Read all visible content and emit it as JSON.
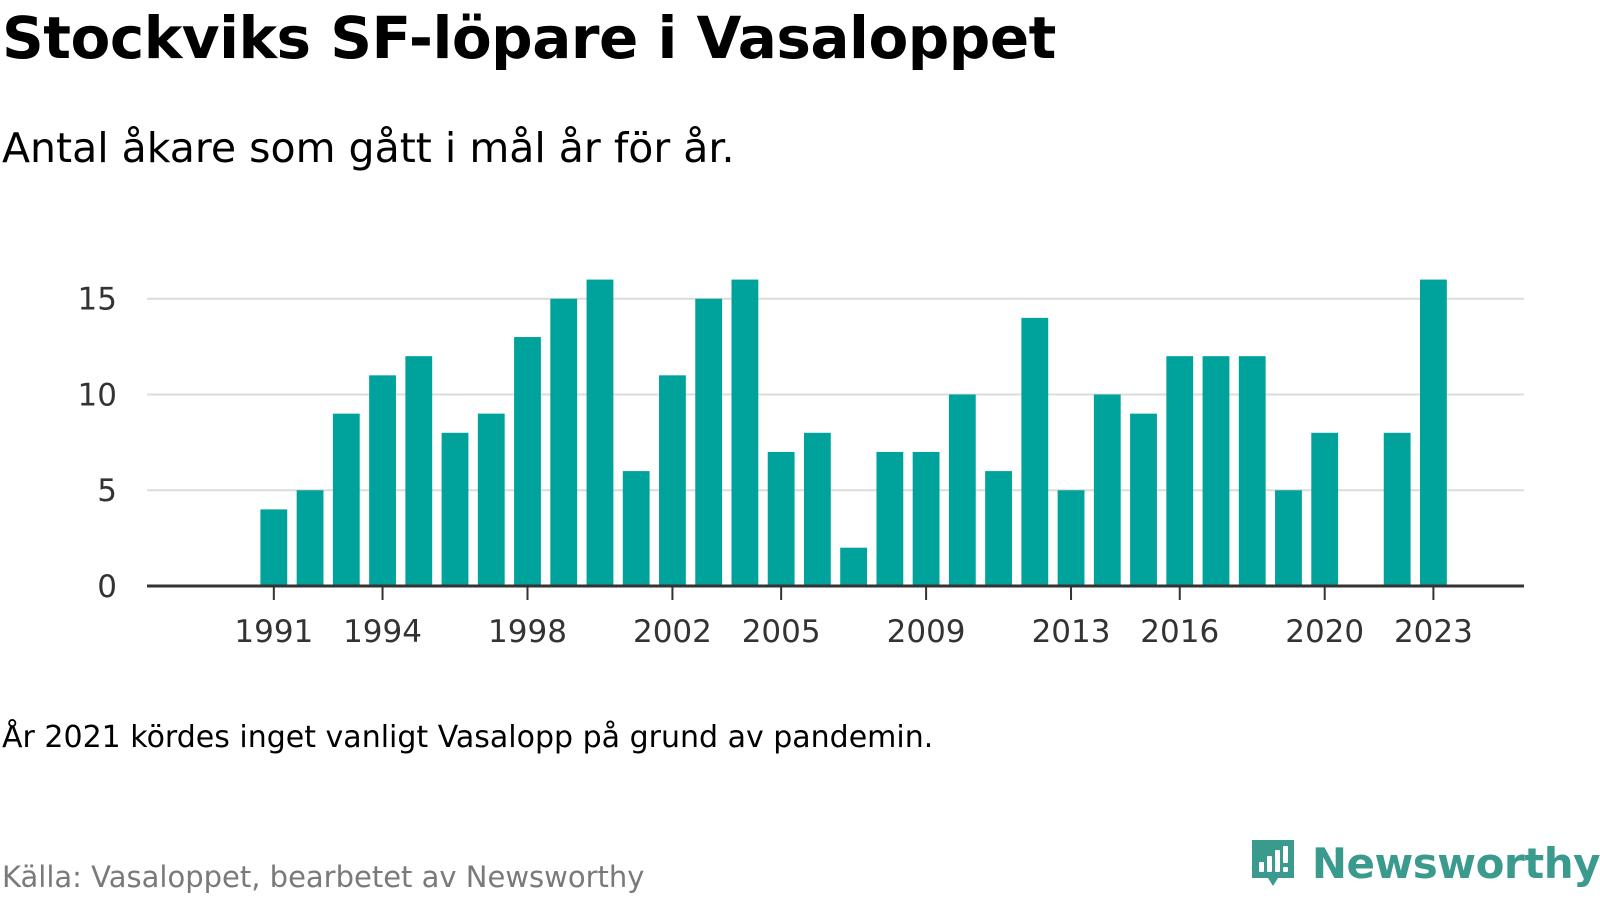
{
  "title": "Stockviks SF-löpare i Vasaloppet",
  "subtitle": "Antal åkare som gått i mål år för år.",
  "note": "År 2021 kördes inget vanligt Vasalopp på grund av pandemin.",
  "source": "Källa: Vasaloppet, bearbetet av Newsworthy",
  "brand": "Newsworthy",
  "logo_icon": "newsworthy-logo-icon",
  "colors": {
    "bar": "#00a39b",
    "grid": "#dcdcdc",
    "axis": "#333333",
    "brand": "#3a9a8e"
  },
  "chart_data": {
    "type": "bar",
    "title": "Stockviks SF-löpare i Vasaloppet",
    "subtitle": "Antal åkare som gått i mål år för år.",
    "xlabel": "",
    "ylabel": "",
    "x": [
      1991,
      1992,
      1993,
      1994,
      1995,
      1996,
      1997,
      1998,
      1999,
      2000,
      2001,
      2002,
      2003,
      2004,
      2005,
      2006,
      2007,
      2008,
      2009,
      2010,
      2011,
      2012,
      2013,
      2014,
      2015,
      2016,
      2017,
      2018,
      2019,
      2020,
      2021,
      2022,
      2023
    ],
    "values": [
      4,
      5,
      9,
      11,
      12,
      8,
      9,
      13,
      15,
      16,
      6,
      11,
      15,
      16,
      7,
      8,
      2,
      7,
      7,
      10,
      6,
      14,
      5,
      10,
      9,
      12,
      12,
      12,
      5,
      8,
      null,
      8,
      16
    ],
    "x_ticks": [
      1991,
      1994,
      1998,
      2002,
      2005,
      2009,
      2013,
      2016,
      2020,
      2023
    ],
    "y_ticks": [
      0,
      5,
      10,
      15
    ],
    "xlim": [
      1987.5,
      2025.5
    ],
    "ylim": [
      0,
      16.5
    ],
    "grid": true,
    "legend": "none"
  }
}
